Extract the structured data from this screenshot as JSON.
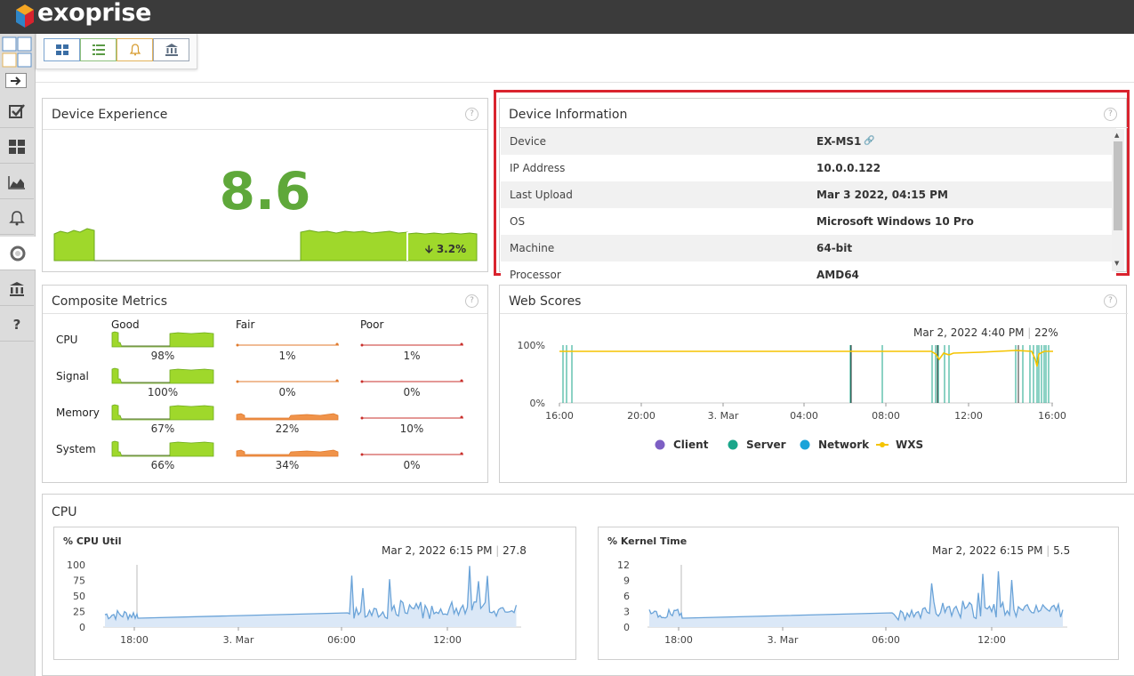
{
  "brand": {
    "name": "exoprise"
  },
  "toolbar": {
    "buttons": [
      "grid-icon",
      "list-icon",
      "bell-icon",
      "bank-icon"
    ]
  },
  "sidebar": {
    "items": [
      "checkbox-icon",
      "dashboard-icon",
      "area-chart-icon",
      "bell-icon",
      "network-icon",
      "bank-icon",
      "help-icon"
    ],
    "help_label": "?"
  },
  "device_experience": {
    "title": "Device Experience",
    "help": "?",
    "score": "8.6",
    "score_color": "#5fa83a",
    "trend": "3.2%"
  },
  "device_info": {
    "title": "Device Information",
    "help": "?",
    "rows": [
      {
        "key": "Device",
        "value": "EX-MS1"
      },
      {
        "key": "IP Address",
        "value": "10.0.0.122"
      },
      {
        "key": "Last Upload",
        "value": "Mar 3 2022, 04:15 PM"
      },
      {
        "key": "OS",
        "value": "Microsoft Windows 10 Pro"
      },
      {
        "key": "Machine",
        "value": "64-bit"
      },
      {
        "key": "Processor",
        "value": "AMD64"
      }
    ]
  },
  "composite": {
    "title": "Composite Metrics",
    "help": "?",
    "columns": [
      "Good",
      "Fair",
      "Poor"
    ],
    "rows": [
      {
        "label": "CPU",
        "good": "98%",
        "fair": "1%",
        "poor": "1%"
      },
      {
        "label": "Signal",
        "good": "100%",
        "fair": "0%",
        "poor": "0%"
      },
      {
        "label": "Memory",
        "good": "67%",
        "fair": "22%",
        "poor": "10%"
      },
      {
        "label": "System",
        "good": "66%",
        "fair": "34%",
        "poor": "0%"
      }
    ]
  },
  "web_scores": {
    "title": "Web Scores",
    "help": "?",
    "readout": "Mar 2, 2022 4:40 PM",
    "readout_value": "22%",
    "y_ticks": [
      "100%",
      "0%"
    ],
    "x_ticks": [
      "16:00",
      "20:00",
      "3. Mar",
      "04:00",
      "08:00",
      "12:00",
      "16:00"
    ],
    "legend": [
      {
        "name": "Client",
        "color": "#7d5fc4"
      },
      {
        "name": "Server",
        "color": "#1aa68a"
      },
      {
        "name": "Network",
        "color": "#1aa3d9"
      },
      {
        "name": "WXS",
        "color": "#f5c400"
      }
    ]
  },
  "cpu_section": {
    "title": "CPU",
    "charts": [
      {
        "title": "% CPU Util",
        "readout": "Mar 2, 2022 6:15 PM",
        "readout_value": "27.8",
        "y_ticks": [
          "100",
          "75",
          "50",
          "25",
          "0"
        ],
        "x_ticks": [
          "18:00",
          "3. Mar",
          "06:00",
          "12:00"
        ]
      },
      {
        "title": "% Kernel Time",
        "readout": "Mar 2, 2022 6:15 PM",
        "readout_value": "5.5",
        "y_ticks": [
          "12",
          "9",
          "6",
          "3",
          "0"
        ],
        "x_ticks": [
          "18:00",
          "3. Mar",
          "06:00",
          "12:00"
        ]
      }
    ]
  },
  "colors": {
    "accent_red": "#d9232e",
    "good": "#9fd82b",
    "fair": "#f0934a",
    "poor": "#d9534f",
    "line": "#6aa3d8"
  }
}
